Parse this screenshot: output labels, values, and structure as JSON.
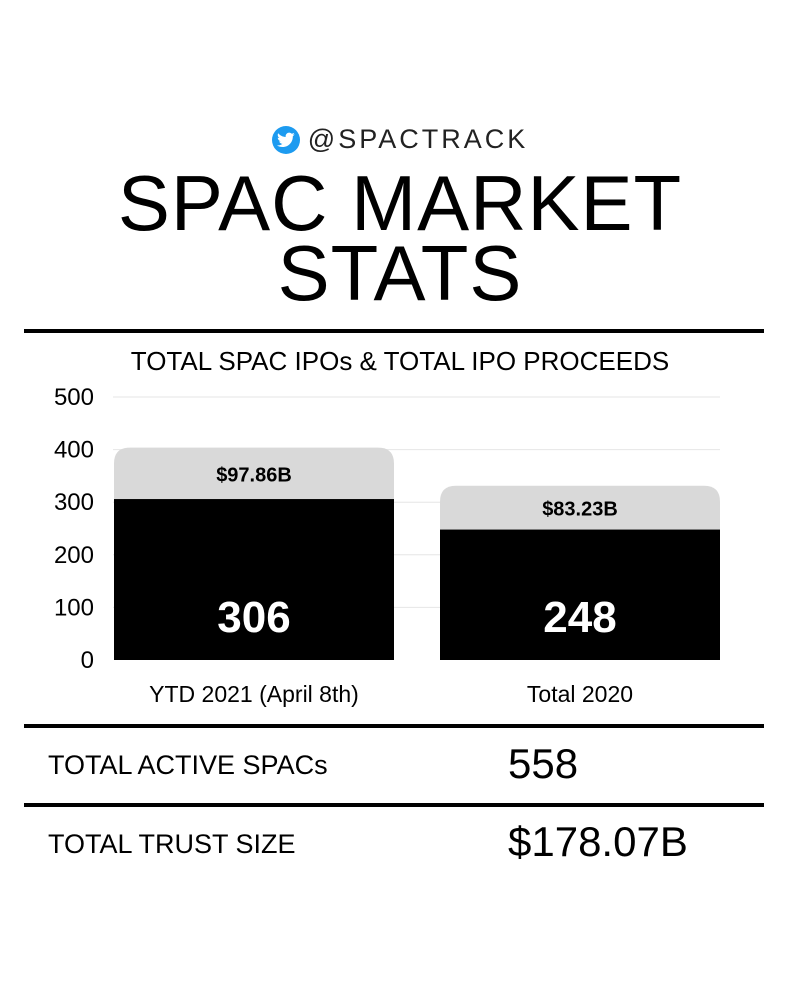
{
  "header": {
    "handle": "@SPACTRACK",
    "icon": "twitter-bird-icon",
    "title_line1": "SPAC MARKET",
    "title_line2": "STATS"
  },
  "colors": {
    "twitter_blue": "#1d9bf0",
    "bar_dark": "#000000",
    "bar_light": "#d9d9d9"
  },
  "chart_data": {
    "type": "bar",
    "title": "TOTAL SPAC IPOs & TOTAL IPO PROCEEDS",
    "categories": [
      "YTD 2021 (April 8th)",
      "Total 2020"
    ],
    "series": [
      {
        "values": [
          306,
          248
        ],
        "labels": [
          "306",
          "248"
        ],
        "color": "#000000"
      },
      {
        "values": [
          97.86,
          83.23
        ],
        "labels": [
          "$97.86B",
          "$83.23B"
        ],
        "color": "#d9d9d9"
      }
    ],
    "ylim": [
      0,
      500
    ],
    "yticks": [
      0,
      100,
      200,
      300,
      400,
      500
    ],
    "grid": true,
    "stacked": true
  },
  "stats": {
    "active_label": "TOTAL ACTIVE SPACs",
    "active_value": "558",
    "trust_label": "TOTAL TRUST SIZE",
    "trust_value": "$178.07B"
  }
}
